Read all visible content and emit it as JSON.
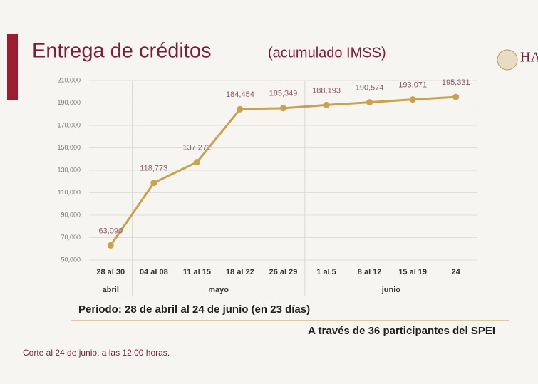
{
  "logo_text": "HA",
  "chart_data": {
    "type": "line",
    "title": "Entrega de créditos",
    "subtitle": "(acumulado IMSS)",
    "categories": [
      "28 al 30",
      "04 al 08",
      "11 al 15",
      "18 al 22",
      "26 al 29",
      "1 al 5",
      "8 al 12",
      "15 al 19",
      "24"
    ],
    "groups": [
      {
        "label": "abril",
        "count": 1
      },
      {
        "label": "mayo",
        "count": 4
      },
      {
        "label": "junio",
        "count": 4
      }
    ],
    "values": [
      63090,
      118773,
      137271,
      184454,
      185349,
      188193,
      190574,
      193071,
      195331
    ],
    "value_labels": [
      "63,090",
      "118,773",
      "137,271",
      "184,454",
      "185,349",
      "188,193",
      "190,574",
      "193,071",
      "195,331"
    ],
    "color": "#c9a24e",
    "ylim": [
      50000,
      210000
    ],
    "yticks": [
      {
        "value": 50000,
        "label": "50,000"
      },
      {
        "value": 70000,
        "label": "70,000"
      },
      {
        "value": 90000,
        "label": "90,000"
      },
      {
        "value": 110000,
        "label": "110,000"
      },
      {
        "value": 130000,
        "label": "130,000"
      },
      {
        "value": 150000,
        "label": "150,000"
      },
      {
        "value": 170000,
        "label": "170,000"
      },
      {
        "value": 190000,
        "label": "190,000"
      },
      {
        "value": 210000,
        "label": "210,000"
      }
    ],
    "grid": true,
    "notes": [
      "Periodo: 28 de abril al 24 de junio (en 23 días)",
      "A través de 36 participantes del SPEI",
      "Corte al 24 de junio, a las 12:00 horas."
    ]
  }
}
